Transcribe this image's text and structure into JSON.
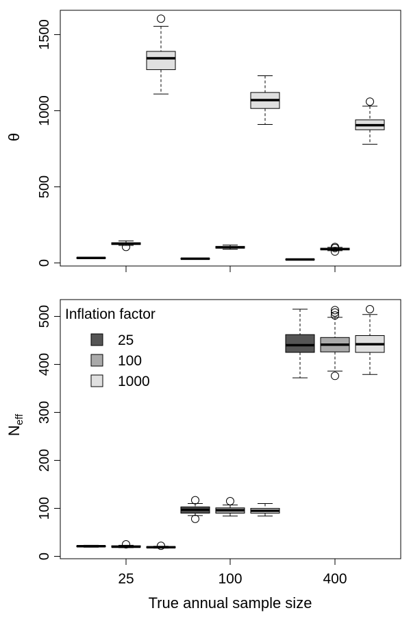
{
  "figure": {
    "xlabel": "True annual sample size",
    "legend_title": "Inflation factor"
  },
  "colors": {
    "25": "#555555",
    "100": "#aaaaaa",
    "1000": "#e0e0e0"
  },
  "chart_data": [
    {
      "type": "box",
      "ylabel": "θ",
      "categories": [
        "25",
        "100",
        "400"
      ],
      "ylim": [
        -20,
        1660
      ],
      "yticks": [
        0,
        500,
        1000,
        1500
      ],
      "grid": false,
      "series": [
        {
          "name": "25",
          "boxes": [
            {
              "min": 30,
              "q1": 31,
              "median": 33,
              "q3": 35,
              "max": 36,
              "outliers": []
            },
            {
              "min": 25,
              "q1": 26,
              "median": 28,
              "q3": 30,
              "max": 31,
              "outliers": []
            },
            {
              "min": 20,
              "q1": 21,
              "median": 23,
              "q3": 25,
              "max": 26,
              "outliers": []
            }
          ]
        },
        {
          "name": "100",
          "boxes": [
            {
              "min": 115,
              "q1": 121,
              "median": 127,
              "q3": 133,
              "max": 145,
              "outliers": [
                105
              ]
            },
            {
              "min": 90,
              "q1": 97,
              "median": 102,
              "q3": 109,
              "max": 118,
              "outliers": []
            },
            {
              "min": 80,
              "q1": 86,
              "median": 91,
              "q3": 97,
              "max": 103,
              "outliers": [
                75,
                98,
                105
              ]
            }
          ]
        },
        {
          "name": "1000",
          "boxes": [
            {
              "min": 1110,
              "q1": 1270,
              "median": 1345,
              "q3": 1390,
              "max": 1555,
              "outliers": [
                1605
              ]
            },
            {
              "min": 910,
              "q1": 1015,
              "median": 1070,
              "q3": 1120,
              "max": 1230,
              "outliers": []
            },
            {
              "min": 780,
              "q1": 875,
              "median": 905,
              "q3": 940,
              "max": 1030,
              "outliers": [
                1060
              ]
            }
          ]
        }
      ]
    },
    {
      "type": "box",
      "ylabel_main": "N",
      "ylabel_sub": "eff",
      "categories": [
        "25",
        "100",
        "400"
      ],
      "ylim": [
        -5,
        535
      ],
      "yticks": [
        0,
        100,
        200,
        300,
        400,
        500
      ],
      "grid": false,
      "legend_position": "top-left",
      "series": [
        {
          "name": "25",
          "boxes": [
            {
              "min": 19,
              "q1": 20,
              "median": 21,
              "q3": 22,
              "max": 23,
              "outliers": []
            },
            {
              "min": 85,
              "q1": 90,
              "median": 97,
              "q3": 103,
              "max": 110,
              "outliers": [
                78,
                117
              ]
            },
            {
              "min": 372,
              "q1": 425,
              "median": 440,
              "q3": 462,
              "max": 515,
              "outliers": []
            }
          ]
        },
        {
          "name": "100",
          "boxes": [
            {
              "min": 18,
              "q1": 19,
              "median": 20,
              "q3": 22,
              "max": 23,
              "outliers": [
                25
              ]
            },
            {
              "min": 84,
              "q1": 90,
              "median": 96,
              "q3": 101,
              "max": 107,
              "outliers": [
                115
              ]
            },
            {
              "min": 386,
              "q1": 426,
              "median": 441,
              "q3": 456,
              "max": 498,
              "outliers": [
                376,
                502,
                508,
                513
              ]
            }
          ]
        },
        {
          "name": "1000",
          "boxes": [
            {
              "min": 17,
              "q1": 18,
              "median": 19,
              "q3": 20,
              "max": 21,
              "outliers": [
                22
              ]
            },
            {
              "min": 84,
              "q1": 90,
              "median": 95,
              "q3": 100,
              "max": 110,
              "outliers": []
            },
            {
              "min": 379,
              "q1": 425,
              "median": 442,
              "q3": 460,
              "max": 504,
              "outliers": [
                515
              ]
            }
          ]
        }
      ]
    }
  ]
}
